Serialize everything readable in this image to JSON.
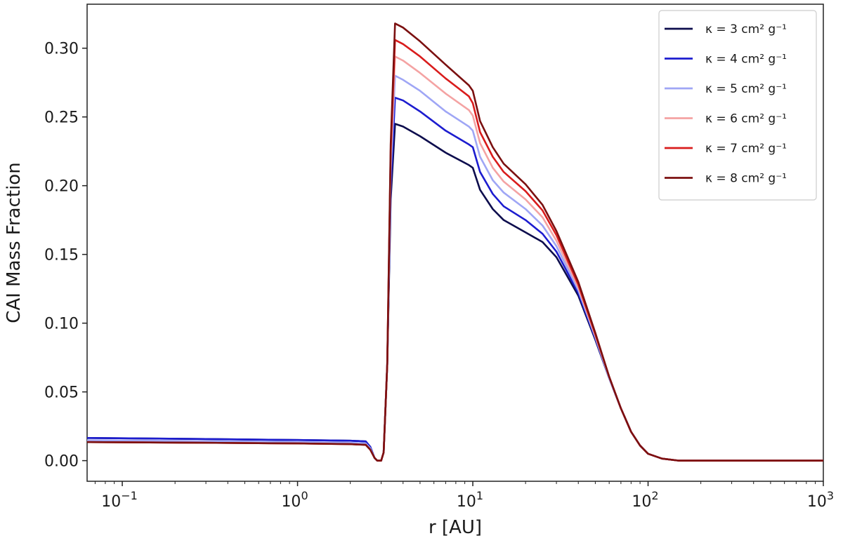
{
  "chart_data": {
    "type": "line",
    "xlabel": "r [AU]",
    "ylabel": "CAI Mass Fraction",
    "xscale": "log",
    "xlim": [
      0.063,
      1000
    ],
    "ylim": [
      -0.015,
      0.332
    ],
    "grid": false,
    "legend_position": "top-right",
    "x_ticks": [
      {
        "value": 0.1,
        "base": "10",
        "exp": "−1"
      },
      {
        "value": 1,
        "base": "10",
        "exp": "0"
      },
      {
        "value": 10,
        "base": "10",
        "exp": "1"
      },
      {
        "value": 100,
        "base": "10",
        "exp": "2"
      },
      {
        "value": 1000,
        "base": "10",
        "exp": "3"
      }
    ],
    "y_ticks": [
      "0.00",
      "0.05",
      "0.10",
      "0.15",
      "0.20",
      "0.25",
      "0.30"
    ],
    "series": [
      {
        "name": "κ = 3 cm² g⁻¹",
        "color": "#0d0d4d",
        "points": [
          [
            0.063,
            0.0165
          ],
          [
            0.3,
            0.0157
          ],
          [
            1,
            0.015
          ],
          [
            2,
            0.0145
          ],
          [
            2.45,
            0.014
          ],
          [
            2.6,
            0.01
          ],
          [
            2.75,
            0.002
          ],
          [
            2.85,
            0.0
          ],
          [
            3.0,
            0.0
          ],
          [
            3.1,
            0.006
          ],
          [
            3.25,
            0.07
          ],
          [
            3.4,
            0.19
          ],
          [
            3.6,
            0.245
          ],
          [
            4,
            0.243
          ],
          [
            5,
            0.236
          ],
          [
            7,
            0.224
          ],
          [
            9.5,
            0.215
          ],
          [
            10,
            0.213
          ],
          [
            11,
            0.197
          ],
          [
            13,
            0.183
          ],
          [
            15,
            0.175
          ],
          [
            20,
            0.166
          ],
          [
            25,
            0.159
          ],
          [
            30,
            0.148
          ],
          [
            40,
            0.12
          ],
          [
            50,
            0.088
          ],
          [
            60,
            0.06
          ],
          [
            70,
            0.038
          ],
          [
            80,
            0.021
          ],
          [
            90,
            0.011
          ],
          [
            100,
            0.005
          ],
          [
            120,
            0.0015
          ],
          [
            150,
            0.0
          ],
          [
            1000,
            0.0
          ]
        ]
      },
      {
        "name": "κ = 4 cm² g⁻¹",
        "color": "#1c1ccf",
        "points": [
          [
            0.063,
            0.0165
          ],
          [
            0.3,
            0.0157
          ],
          [
            1,
            0.015
          ],
          [
            2,
            0.0145
          ],
          [
            2.45,
            0.014
          ],
          [
            2.6,
            0.01
          ],
          [
            2.75,
            0.002
          ],
          [
            2.85,
            0.0
          ],
          [
            3.0,
            0.0
          ],
          [
            3.1,
            0.006
          ],
          [
            3.25,
            0.07
          ],
          [
            3.4,
            0.2
          ],
          [
            3.6,
            0.264
          ],
          [
            4,
            0.262
          ],
          [
            5,
            0.254
          ],
          [
            7,
            0.24
          ],
          [
            9.5,
            0.23
          ],
          [
            10,
            0.228
          ],
          [
            11,
            0.21
          ],
          [
            13,
            0.194
          ],
          [
            15,
            0.185
          ],
          [
            20,
            0.175
          ],
          [
            25,
            0.165
          ],
          [
            30,
            0.152
          ],
          [
            40,
            0.122
          ],
          [
            50,
            0.089
          ],
          [
            60,
            0.06
          ],
          [
            70,
            0.038
          ],
          [
            80,
            0.021
          ],
          [
            90,
            0.011
          ],
          [
            100,
            0.005
          ],
          [
            120,
            0.0015
          ],
          [
            150,
            0.0
          ],
          [
            1000,
            0.0
          ]
        ]
      },
      {
        "name": "κ = 5 cm² g⁻¹",
        "color": "#9fa6f5",
        "points": [
          [
            0.063,
            0.0148
          ],
          [
            0.3,
            0.0142
          ],
          [
            1,
            0.0135
          ],
          [
            2,
            0.013
          ],
          [
            2.45,
            0.0125
          ],
          [
            2.6,
            0.009
          ],
          [
            2.75,
            0.002
          ],
          [
            2.85,
            0.0
          ],
          [
            3.0,
            0.0
          ],
          [
            3.1,
            0.006
          ],
          [
            3.25,
            0.07
          ],
          [
            3.4,
            0.21
          ],
          [
            3.6,
            0.28
          ],
          [
            4,
            0.277
          ],
          [
            5,
            0.269
          ],
          [
            7,
            0.254
          ],
          [
            9.5,
            0.243
          ],
          [
            10,
            0.24
          ],
          [
            11,
            0.221
          ],
          [
            13,
            0.204
          ],
          [
            15,
            0.195
          ],
          [
            20,
            0.183
          ],
          [
            25,
            0.171
          ],
          [
            30,
            0.156
          ],
          [
            40,
            0.124
          ],
          [
            50,
            0.09
          ],
          [
            60,
            0.06
          ],
          [
            70,
            0.038
          ],
          [
            80,
            0.021
          ],
          [
            90,
            0.011
          ],
          [
            100,
            0.005
          ],
          [
            120,
            0.0015
          ],
          [
            150,
            0.0
          ],
          [
            1000,
            0.0
          ]
        ]
      },
      {
        "name": "κ = 6 cm² g⁻¹",
        "color": "#f4a3a3",
        "points": [
          [
            0.063,
            0.0135
          ],
          [
            0.3,
            0.013
          ],
          [
            1,
            0.0125
          ],
          [
            2,
            0.012
          ],
          [
            2.45,
            0.0115
          ],
          [
            2.6,
            0.008
          ],
          [
            2.75,
            0.002
          ],
          [
            2.85,
            0.0
          ],
          [
            3.0,
            0.0
          ],
          [
            3.1,
            0.006
          ],
          [
            3.25,
            0.07
          ],
          [
            3.4,
            0.22
          ],
          [
            3.6,
            0.294
          ],
          [
            4,
            0.291
          ],
          [
            5,
            0.282
          ],
          [
            7,
            0.267
          ],
          [
            9.5,
            0.255
          ],
          [
            10,
            0.251
          ],
          [
            11,
            0.231
          ],
          [
            13,
            0.213
          ],
          [
            15,
            0.203
          ],
          [
            20,
            0.19
          ],
          [
            25,
            0.177
          ],
          [
            30,
            0.16
          ],
          [
            40,
            0.126
          ],
          [
            50,
            0.091
          ],
          [
            60,
            0.061
          ],
          [
            70,
            0.038
          ],
          [
            80,
            0.021
          ],
          [
            90,
            0.011
          ],
          [
            100,
            0.005
          ],
          [
            120,
            0.0015
          ],
          [
            150,
            0.0
          ],
          [
            1000,
            0.0
          ]
        ]
      },
      {
        "name": "κ = 7 cm² g⁻¹",
        "color": "#d91c1c",
        "points": [
          [
            0.063,
            0.0135
          ],
          [
            0.3,
            0.013
          ],
          [
            1,
            0.0125
          ],
          [
            2,
            0.012
          ],
          [
            2.45,
            0.0115
          ],
          [
            2.6,
            0.008
          ],
          [
            2.75,
            0.002
          ],
          [
            2.85,
            0.0
          ],
          [
            3.0,
            0.0
          ],
          [
            3.1,
            0.006
          ],
          [
            3.25,
            0.07
          ],
          [
            3.4,
            0.225
          ],
          [
            3.6,
            0.306
          ],
          [
            4,
            0.303
          ],
          [
            5,
            0.294
          ],
          [
            7,
            0.278
          ],
          [
            9.5,
            0.265
          ],
          [
            10,
            0.26
          ],
          [
            11,
            0.239
          ],
          [
            13,
            0.221
          ],
          [
            15,
            0.21
          ],
          [
            20,
            0.196
          ],
          [
            25,
            0.182
          ],
          [
            30,
            0.164
          ],
          [
            40,
            0.128
          ],
          [
            50,
            0.092
          ],
          [
            60,
            0.061
          ],
          [
            70,
            0.038
          ],
          [
            80,
            0.021
          ],
          [
            90,
            0.011
          ],
          [
            100,
            0.005
          ],
          [
            120,
            0.0015
          ],
          [
            150,
            0.0
          ],
          [
            1000,
            0.0
          ]
        ]
      },
      {
        "name": "κ = 8 cm² g⁻¹",
        "color": "#7b1010",
        "points": [
          [
            0.063,
            0.0135
          ],
          [
            0.3,
            0.013
          ],
          [
            1,
            0.0125
          ],
          [
            2,
            0.012
          ],
          [
            2.45,
            0.0115
          ],
          [
            2.6,
            0.008
          ],
          [
            2.75,
            0.002
          ],
          [
            2.85,
            0.0
          ],
          [
            3.0,
            0.0
          ],
          [
            3.1,
            0.006
          ],
          [
            3.25,
            0.07
          ],
          [
            3.4,
            0.23
          ],
          [
            3.6,
            0.318
          ],
          [
            4,
            0.315
          ],
          [
            5,
            0.305
          ],
          [
            7,
            0.288
          ],
          [
            9.5,
            0.273
          ],
          [
            10,
            0.269
          ],
          [
            11,
            0.247
          ],
          [
            13,
            0.228
          ],
          [
            15,
            0.216
          ],
          [
            20,
            0.201
          ],
          [
            25,
            0.186
          ],
          [
            30,
            0.167
          ],
          [
            40,
            0.13
          ],
          [
            50,
            0.093
          ],
          [
            60,
            0.061
          ],
          [
            70,
            0.038
          ],
          [
            80,
            0.021
          ],
          [
            90,
            0.011
          ],
          [
            100,
            0.005
          ],
          [
            120,
            0.0015
          ],
          [
            150,
            0.0
          ],
          [
            1000,
            0.0
          ]
        ]
      }
    ]
  }
}
